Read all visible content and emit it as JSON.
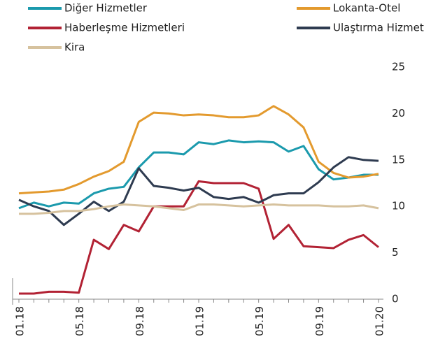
{
  "chart_data": {
    "type": "line",
    "categories": [
      "01.18",
      null,
      null,
      null,
      "05.18",
      null,
      null,
      null,
      "09.18",
      null,
      null,
      null,
      "01.19",
      null,
      null,
      null,
      "05.19",
      null,
      null,
      null,
      "09.19",
      null,
      null,
      null,
      "01.20"
    ],
    "series": [
      {
        "name": "Diğer Hizmetler",
        "color": "#1b9aad",
        "values": [
          9.8,
          10.4,
          10.0,
          10.4,
          10.3,
          11.4,
          11.9,
          12.1,
          14.2,
          15.8,
          15.8,
          15.6,
          16.9,
          16.7,
          17.1,
          16.9,
          17.0,
          16.9,
          15.9,
          16.5,
          14.0,
          12.9,
          13.1,
          13.4,
          13.4
        ]
      },
      {
        "name": "Lokanta-Otel",
        "color": "#e39a2e",
        "values": [
          11.4,
          11.5,
          11.6,
          11.8,
          12.4,
          13.2,
          13.8,
          14.8,
          19.1,
          20.1,
          20.0,
          19.8,
          19.9,
          19.8,
          19.6,
          19.6,
          19.8,
          20.8,
          19.9,
          18.5,
          14.8,
          13.6,
          13.1,
          13.2,
          13.5
        ]
      },
      {
        "name": "Haberleşme Hizmetleri",
        "color": "#b22234",
        "values": [
          0.6,
          0.6,
          0.8,
          0.8,
          0.7,
          6.4,
          5.4,
          8.0,
          7.3,
          10.0,
          10.0,
          10.0,
          12.7,
          12.5,
          12.5,
          12.5,
          11.9,
          6.5,
          8.0,
          5.7,
          5.6,
          5.5,
          6.4,
          6.9,
          5.6
        ]
      },
      {
        "name": "Ulaştırma Hizmetleri",
        "color": "#2e3b50",
        "values": [
          10.7,
          10.0,
          9.5,
          8.0,
          9.2,
          10.5,
          9.5,
          10.5,
          14.1,
          12.2,
          12.0,
          11.7,
          12.0,
          11.0,
          10.8,
          11.0,
          10.4,
          11.2,
          11.4,
          11.4,
          12.6,
          14.2,
          15.3,
          15.0,
          14.9
        ]
      },
      {
        "name": "Kira",
        "color": "#d6c29e",
        "values": [
          9.2,
          9.2,
          9.3,
          9.5,
          9.5,
          9.7,
          10.0,
          10.2,
          10.1,
          10.0,
          9.8,
          9.6,
          10.2,
          10.2,
          10.1,
          10.0,
          10.1,
          10.2,
          10.1,
          10.1,
          10.1,
          10.0,
          10.0,
          10.1,
          9.8
        ]
      }
    ],
    "ylim": [
      0,
      25
    ],
    "yticks": [
      0,
      5,
      10,
      15,
      20,
      25
    ],
    "y_axis_side": "right",
    "grid": false
  }
}
